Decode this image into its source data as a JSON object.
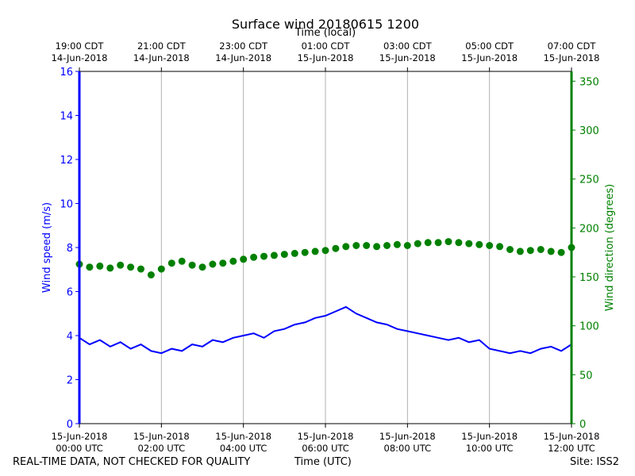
{
  "header": {
    "title": "Surface wind 20180615 1200",
    "top_axis_title": "Time (local)"
  },
  "footer": {
    "left_note": "REAL-TIME DATA, NOT CHECKED FOR QUALITY",
    "center_label": "Time (UTC)",
    "site": "Site: ISS2"
  },
  "chart_data": {
    "type": "line",
    "title": "Surface wind 20180615 1200",
    "xlabel": "Time (UTC)",
    "x2label": "Time (local)",
    "ylabel": "Wind speed (m/s)",
    "y2label": "Wind direction (degrees)",
    "xlim_hours_utc": [
      0,
      12
    ],
    "ylim": [
      0,
      16
    ],
    "y2lim": [
      0,
      360
    ],
    "grid": "vertical only",
    "yticks": [
      0,
      2,
      4,
      6,
      8,
      10,
      12,
      14,
      16
    ],
    "y2ticks": [
      0,
      50,
      100,
      150,
      200,
      250,
      300,
      350
    ],
    "xticks": [
      {
        "hour": 0,
        "line1": "15-Jun-2018",
        "line2": "00:00 UTC"
      },
      {
        "hour": 2,
        "line1": "15-Jun-2018",
        "line2": "02:00 UTC"
      },
      {
        "hour": 4,
        "line1": "15-Jun-2018",
        "line2": "04:00 UTC"
      },
      {
        "hour": 6,
        "line1": "15-Jun-2018",
        "line2": "06:00 UTC"
      },
      {
        "hour": 8,
        "line1": "15-Jun-2018",
        "line2": "08:00 UTC"
      },
      {
        "hour": 10,
        "line1": "15-Jun-2018",
        "line2": "10:00 UTC"
      },
      {
        "hour": 12,
        "line1": "15-Jun-2018",
        "line2": "12:00 UTC"
      }
    ],
    "x2ticks": [
      {
        "hour": 0,
        "line1": "19:00 CDT",
        "line2": "14-Jun-2018"
      },
      {
        "hour": 2,
        "line1": "21:00 CDT",
        "line2": "14-Jun-2018"
      },
      {
        "hour": 4,
        "line1": "23:00 CDT",
        "line2": "14-Jun-2018"
      },
      {
        "hour": 6,
        "line1": "01:00 CDT",
        "line2": "15-Jun-2018"
      },
      {
        "hour": 8,
        "line1": "03:00 CDT",
        "line2": "15-Jun-2018"
      },
      {
        "hour": 10,
        "line1": "05:00 CDT",
        "line2": "15-Jun-2018"
      },
      {
        "hour": 12,
        "line1": "07:00 CDT",
        "line2": "15-Jun-2018"
      }
    ],
    "series": [
      {
        "axis": "left",
        "style": "line",
        "color": "#0000ff",
        "hours_utc": [
          0,
          0.25,
          0.5,
          0.75,
          1,
          1.25,
          1.5,
          1.75,
          2,
          2.25,
          2.5,
          2.75,
          3,
          3.25,
          3.5,
          3.75,
          4,
          4.25,
          4.5,
          4.75,
          5,
          5.25,
          5.5,
          5.75,
          6,
          6.25,
          6.5,
          6.75,
          7,
          7.25,
          7.5,
          7.75,
          8,
          8.25,
          8.5,
          8.75,
          9,
          9.25,
          9.5,
          9.75,
          10,
          10.25,
          10.5,
          10.75,
          11,
          11.25,
          11.5,
          11.75,
          12
        ],
        "values": [
          3.9,
          3.6,
          3.8,
          3.5,
          3.7,
          3.4,
          3.6,
          3.3,
          3.2,
          3.4,
          3.3,
          3.6,
          3.5,
          3.8,
          3.7,
          3.9,
          4.0,
          4.1,
          3.9,
          4.2,
          4.3,
          4.5,
          4.6,
          4.8,
          4.9,
          5.1,
          5.3,
          5.0,
          4.8,
          4.6,
          4.5,
          4.3,
          4.2,
          4.1,
          4.0,
          3.9,
          3.8,
          3.9,
          3.7,
          3.8,
          3.4,
          3.3,
          3.2,
          3.3,
          3.2,
          3.4,
          3.5,
          3.3,
          3.6
        ]
      },
      {
        "axis": "right",
        "style": "points",
        "color": "#008000",
        "hours_utc": [
          0,
          0.25,
          0.5,
          0.75,
          1,
          1.25,
          1.5,
          1.75,
          2,
          2.25,
          2.5,
          2.75,
          3,
          3.25,
          3.5,
          3.75,
          4,
          4.25,
          4.5,
          4.75,
          5,
          5.25,
          5.5,
          5.75,
          6,
          6.25,
          6.5,
          6.75,
          7,
          7.25,
          7.5,
          7.75,
          8,
          8.25,
          8.5,
          8.75,
          9,
          9.25,
          9.5,
          9.75,
          10,
          10.25,
          10.5,
          10.75,
          11,
          11.25,
          11.5,
          11.75,
          12
        ],
        "values": [
          163,
          160,
          161,
          159,
          162,
          160,
          158,
          152,
          158,
          164,
          166,
          162,
          160,
          163,
          164,
          166,
          168,
          170,
          171,
          172,
          173,
          174,
          175,
          176,
          177,
          179,
          181,
          182,
          182,
          181,
          182,
          183,
          182,
          184,
          185,
          185,
          186,
          185,
          184,
          183,
          182,
          181,
          178,
          176,
          177,
          178,
          176,
          175,
          180
        ]
      }
    ]
  }
}
